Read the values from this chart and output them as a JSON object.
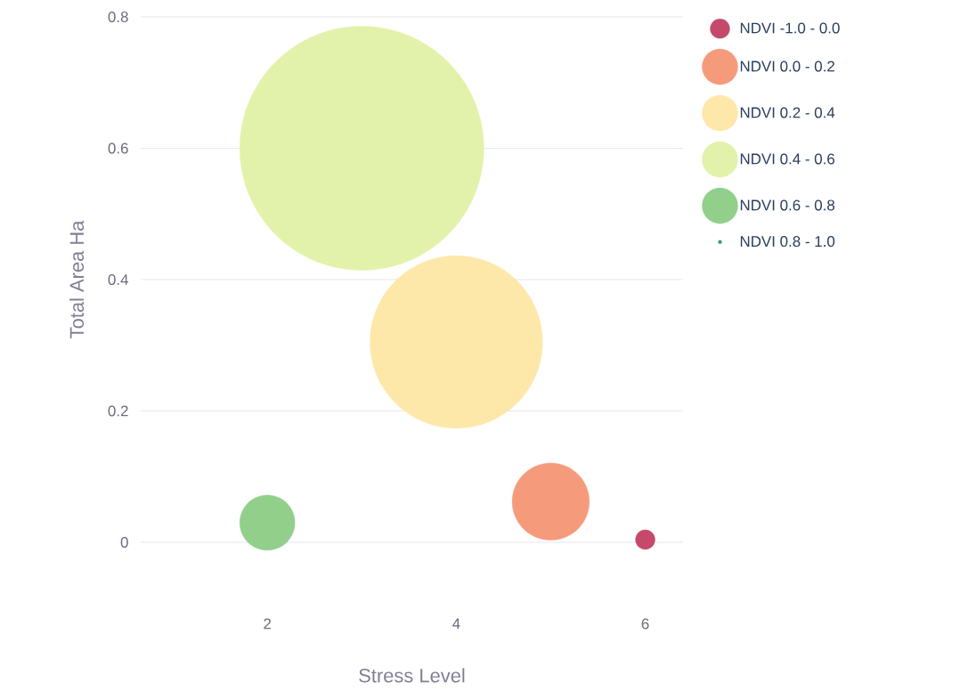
{
  "chart_data": {
    "type": "bubble",
    "xlabel": "Stress Level",
    "ylabel": "Total Area Ha",
    "xlim": [
      0.66,
      6.4
    ],
    "ylim": [
      0,
      0.8
    ],
    "xticks": [
      2,
      4,
      6
    ],
    "yticks": [
      0,
      0.2,
      0.4,
      0.6,
      0.8
    ],
    "grid": "y",
    "legend": "top right",
    "series": [
      {
        "name": "NDVI -1.0 - 0.0",
        "color": "#c4496a",
        "x": [
          6
        ],
        "values": [
          0.004
        ],
        "sizes": [
          0.0064
        ]
      },
      {
        "name": "NDVI 0.0 - 0.2",
        "color": "#f69a7c",
        "x": [
          5
        ],
        "values": [
          0.062
        ],
        "sizes": [
          0.1
        ]
      },
      {
        "name": "NDVI 0.2 - 0.4",
        "color": "#fde8aa",
        "x": [
          4
        ],
        "values": [
          0.305
        ],
        "sizes": [
          0.5
        ]
      },
      {
        "name": "NDVI 0.4 - 0.6",
        "color": "#e2f2aa",
        "x": [
          3
        ],
        "values": [
          0.6
        ],
        "sizes": [
          1
        ]
      },
      {
        "name": "NDVI 0.6 - 0.8",
        "color": "#91cf8a",
        "x": [
          2
        ],
        "values": [
          0.03
        ],
        "sizes": [
          0.051
        ]
      },
      {
        "name": "NDVI 0.8 - 1.0",
        "color": "#3b9a6e"
      }
    ]
  }
}
